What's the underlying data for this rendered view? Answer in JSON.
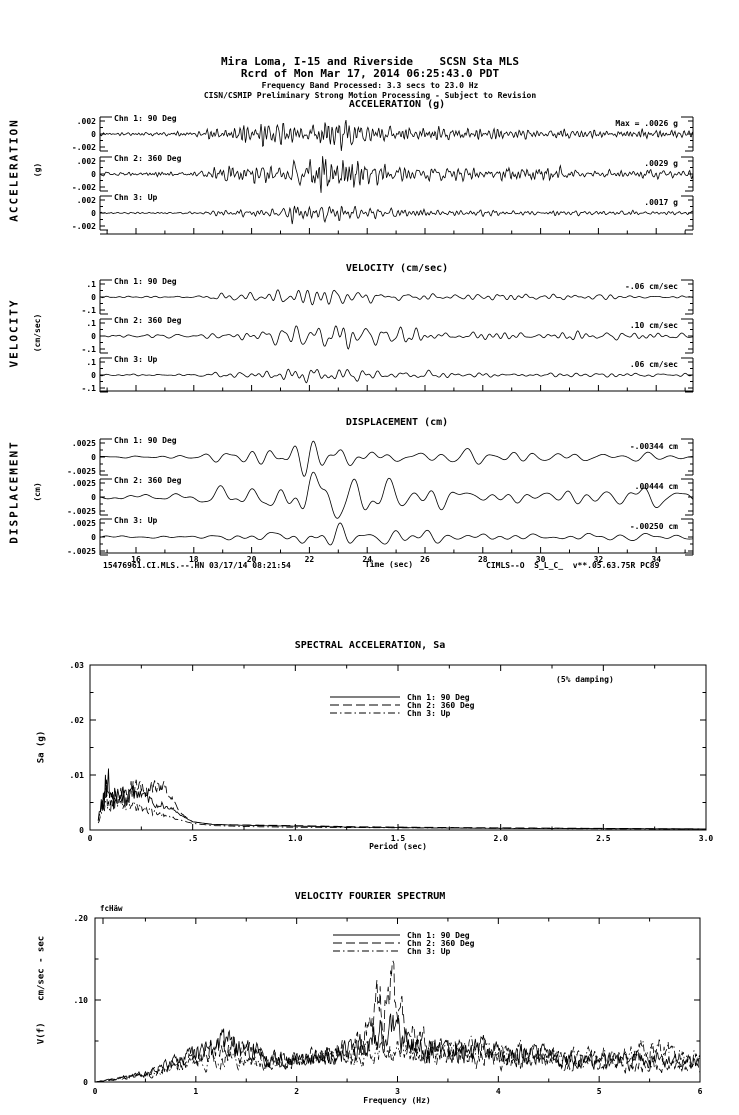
{
  "header": {
    "line1": "Mira Loma, I-15 and Riverside    SCSN Sta MLS",
    "line2": "Rcrd of Mon Mar 17, 2014 06:25:43.0 PDT",
    "line3": "Frequency Band Processed: 3.3 secs to 23.0 Hz",
    "line4": "CISN/CSMIP Preliminary Strong Motion Processing - Subject to Revision"
  },
  "footer": {
    "left": "15476961.CI.MLS.--.HN 03/17/14 08:21:54",
    "right": "CIMLS--O  S_L_C_  v**.05.63.75R PC89"
  },
  "time_axis": {
    "label": "Time (sec)",
    "major_ticks": [
      16,
      18,
      20,
      22,
      24,
      26,
      28,
      30,
      32,
      34
    ],
    "minor_step": 1,
    "range_sec": [
      14.8,
      35.3
    ]
  },
  "colors": {
    "ink": "#000000",
    "paper": "#ffffff"
  },
  "chart_data": [
    {
      "id": "acceleration",
      "type": "line",
      "title": "ACCELERATION (g)",
      "side_label": "ACCELERATION",
      "side_unit": "(g)",
      "y_tick_labels": [
        ".002",
        "0",
        "-.002"
      ],
      "y_full_scale": 0.002,
      "channels": [
        {
          "label": "Chn 1: 90 Deg",
          "peak_text": "Max =   .0026",
          "unit": "g",
          "peak_value": 0.0026
        },
        {
          "label": "Chn 2: 360 Deg",
          "peak_text": ".0029",
          "unit": "g",
          "peak_value": 0.0029
        },
        {
          "label": "Chn 3: Up",
          "peak_text": ".0017",
          "unit": "g",
          "peak_value": 0.0017
        }
      ]
    },
    {
      "id": "velocity",
      "type": "line",
      "title": "VELOCITY (cm/sec)",
      "side_label": "VELOCITY",
      "side_unit": "(cm/sec)",
      "y_tick_labels": [
        ".1",
        "0",
        "-.1"
      ],
      "y_full_scale": 0.1,
      "channels": [
        {
          "label": "Chn 1: 90 Deg",
          "peak_text": "-.06",
          "unit": "cm/sec",
          "peak_value": 0.06
        },
        {
          "label": "Chn 2: 360 Deg",
          "peak_text": ".10",
          "unit": "cm/sec",
          "peak_value": 0.1
        },
        {
          "label": "Chn 3: Up",
          "peak_text": ".06",
          "unit": "cm/sec",
          "peak_value": 0.06
        }
      ]
    },
    {
      "id": "displacement",
      "type": "line",
      "title": "DISPLACEMENT (cm)",
      "side_label": "DISPLACEMENT",
      "side_unit": "(cm)",
      "y_tick_labels": [
        ".0025",
        "0",
        "-.0025"
      ],
      "y_full_scale": 0.0025,
      "channels": [
        {
          "label": "Chn 1: 90 Deg",
          "peak_text": "-.00344",
          "unit": "cm",
          "peak_value": 0.00344
        },
        {
          "label": "Chn 2: 360 Deg",
          "peak_text": ".00444",
          "unit": "cm",
          "peak_value": 0.00444
        },
        {
          "label": "Chn 3: Up",
          "peak_text": "-.00250",
          "unit": "cm",
          "peak_value": 0.0025
        }
      ]
    },
    {
      "id": "spectral_acceleration",
      "type": "line",
      "title": "SPECTRAL ACCELERATION, Sa",
      "note": "(5% damping)",
      "xlabel": "Period (sec)",
      "ylabel": "Sa (g)",
      "xlim": [
        0,
        3.0
      ],
      "ylim": [
        0,
        0.03
      ],
      "x_tick_labels": [
        "0",
        ".5",
        "1.0",
        "1.5",
        "2.0",
        "2.5",
        "3.0"
      ],
      "x_tick_values": [
        0,
        0.5,
        1.0,
        1.5,
        2.0,
        2.5,
        3.0
      ],
      "y_tick_labels": [
        ".03",
        ".02",
        ".01",
        "0"
      ],
      "y_tick_values": [
        0.03,
        0.02,
        0.01,
        0
      ],
      "legend": [
        {
          "label": "Chn 1: 90 Deg",
          "style": "solid"
        },
        {
          "label": "Chn 2: 360 Deg",
          "style": "dash"
        },
        {
          "label": "Chn 3: Up",
          "style": "dashdot"
        }
      ],
      "series": [
        {
          "name": "Chn 1: 90 Deg",
          "style": "solid",
          "points": [
            [
              0.04,
              0.002
            ],
            [
              0.06,
              0.005
            ],
            [
              0.085,
              0.0095
            ],
            [
              0.11,
              0.0055
            ],
            [
              0.14,
              0.007
            ],
            [
              0.17,
              0.0055
            ],
            [
              0.21,
              0.0065
            ],
            [
              0.25,
              0.006
            ],
            [
              0.3,
              0.005
            ],
            [
              0.35,
              0.0045
            ],
            [
              0.4,
              0.004
            ],
            [
              0.45,
              0.0025
            ],
            [
              0.5,
              0.0015
            ],
            [
              0.6,
              0.001
            ],
            [
              0.8,
              0.0008
            ],
            [
              1.0,
              0.0007
            ],
            [
              1.3,
              0.0005
            ],
            [
              1.6,
              0.0004
            ],
            [
              2.0,
              0.0003
            ],
            [
              2.5,
              0.00025
            ],
            [
              3.0,
              0.0002
            ]
          ]
        },
        {
          "name": "Chn 2: 360 Deg",
          "style": "dash",
          "points": [
            [
              0.04,
              0.0018
            ],
            [
              0.06,
              0.004
            ],
            [
              0.085,
              0.0075
            ],
            [
              0.11,
              0.005
            ],
            [
              0.15,
              0.0065
            ],
            [
              0.19,
              0.0075
            ],
            [
              0.23,
              0.008
            ],
            [
              0.27,
              0.007
            ],
            [
              0.31,
              0.008
            ],
            [
              0.36,
              0.008
            ],
            [
              0.41,
              0.005
            ],
            [
              0.45,
              0.0028
            ],
            [
              0.5,
              0.0015
            ],
            [
              0.6,
              0.001
            ],
            [
              0.8,
              0.0009
            ],
            [
              1.0,
              0.0008
            ],
            [
              1.3,
              0.0006
            ],
            [
              1.6,
              0.0005
            ],
            [
              2.0,
              0.0004
            ],
            [
              2.5,
              0.0003
            ],
            [
              3.0,
              0.0002
            ]
          ]
        },
        {
          "name": "Chn 3: Up",
          "style": "dashdot",
          "points": [
            [
              0.04,
              0.0015
            ],
            [
              0.06,
              0.0045
            ],
            [
              0.08,
              0.0065
            ],
            [
              0.1,
              0.0042
            ],
            [
              0.13,
              0.005
            ],
            [
              0.17,
              0.0042
            ],
            [
              0.21,
              0.0045
            ],
            [
              0.26,
              0.0038
            ],
            [
              0.31,
              0.0032
            ],
            [
              0.36,
              0.0028
            ],
            [
              0.42,
              0.002
            ],
            [
              0.5,
              0.0012
            ],
            [
              0.6,
              0.0008
            ],
            [
              0.8,
              0.0006
            ],
            [
              1.0,
              0.0005
            ],
            [
              1.5,
              0.0004
            ],
            [
              2.0,
              0.0003
            ],
            [
              2.5,
              0.00022
            ],
            [
              3.0,
              0.00018
            ]
          ]
        }
      ]
    },
    {
      "id": "velocity_fourier_spectrum",
      "type": "line",
      "title": "VELOCITY FOURIER SPECTRUM",
      "corner_label": "fcHäw",
      "xlabel": "Frequency (Hz)",
      "ylabel": "V(f)    cm/sec - sec",
      "xlim": [
        0,
        6
      ],
      "ylim": [
        0,
        0.2
      ],
      "x_tick_labels": [
        "0",
        "1",
        "2",
        "3",
        "4",
        "5",
        "6"
      ],
      "x_tick_values": [
        0,
        1,
        2,
        3,
        4,
        5,
        6
      ],
      "y_tick_labels": [
        ".20",
        ".10",
        "0"
      ],
      "y_tick_values": [
        0.2,
        0.1,
        0
      ],
      "legend": [
        {
          "label": "Chn 1: 90 Deg",
          "style": "solid"
        },
        {
          "label": "Chn 2: 360 Deg",
          "style": "dash"
        },
        {
          "label": "Chn 3: Up",
          "style": "dashdot"
        }
      ],
      "series": [
        {
          "name": "Chn 1: 90 Deg",
          "style": "solid",
          "envelope": [
            [
              0,
              0
            ],
            [
              0.2,
              0.004
            ],
            [
              0.5,
              0.012
            ],
            [
              0.8,
              0.025
            ],
            [
              1.0,
              0.035
            ],
            [
              1.25,
              0.05
            ],
            [
              1.45,
              0.045
            ],
            [
              1.7,
              0.03
            ],
            [
              2.0,
              0.028
            ],
            [
              2.3,
              0.035
            ],
            [
              2.6,
              0.04
            ],
            [
              2.9,
              0.065
            ],
            [
              3.1,
              0.05
            ],
            [
              3.4,
              0.04
            ],
            [
              3.8,
              0.042
            ],
            [
              4.2,
              0.035
            ],
            [
              4.6,
              0.03
            ],
            [
              5.0,
              0.028
            ],
            [
              5.4,
              0.03
            ],
            [
              5.7,
              0.025
            ],
            [
              6.0,
              0.022
            ]
          ]
        },
        {
          "name": "Chn 2: 360 Deg",
          "style": "dash",
          "envelope": [
            [
              0,
              0
            ],
            [
              0.2,
              0.003
            ],
            [
              0.5,
              0.01
            ],
            [
              0.8,
              0.02
            ],
            [
              1.0,
              0.03
            ],
            [
              1.25,
              0.045
            ],
            [
              1.5,
              0.04
            ],
            [
              1.8,
              0.028
            ],
            [
              2.1,
              0.03
            ],
            [
              2.5,
              0.04
            ],
            [
              2.75,
              0.07
            ],
            [
              2.9,
              0.125
            ],
            [
              3.05,
              0.08
            ],
            [
              3.3,
              0.045
            ],
            [
              3.6,
              0.035
            ],
            [
              4.0,
              0.03
            ],
            [
              4.5,
              0.028
            ],
            [
              5.0,
              0.022
            ],
            [
              5.5,
              0.02
            ],
            [
              6.0,
              0.018
            ]
          ]
        },
        {
          "name": "Chn 3: Up",
          "style": "dashdot",
          "envelope": [
            [
              0,
              0
            ],
            [
              0.2,
              0.003
            ],
            [
              0.5,
              0.01
            ],
            [
              0.8,
              0.018
            ],
            [
              1.1,
              0.028
            ],
            [
              1.4,
              0.032
            ],
            [
              1.7,
              0.024
            ],
            [
              2.0,
              0.026
            ],
            [
              2.4,
              0.032
            ],
            [
              2.8,
              0.04
            ],
            [
              3.0,
              0.045
            ],
            [
              3.3,
              0.038
            ],
            [
              3.7,
              0.045
            ],
            [
              4.1,
              0.04
            ],
            [
              4.5,
              0.035
            ],
            [
              4.9,
              0.03
            ],
            [
              5.3,
              0.04
            ],
            [
              5.6,
              0.042
            ],
            [
              6.0,
              0.03
            ]
          ]
        }
      ]
    }
  ]
}
